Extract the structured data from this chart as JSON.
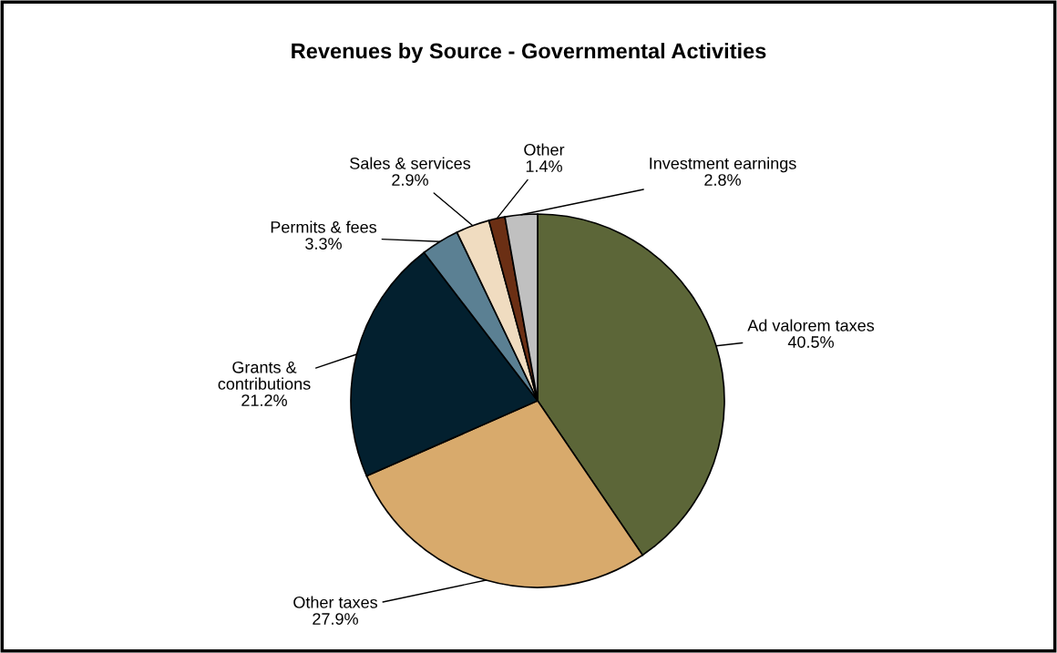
{
  "chart_data": {
    "type": "pie",
    "title": "Revenues by Source - Governmental Activities",
    "categories": [
      "Ad valorem taxes",
      "Other taxes",
      "Grants &\ncontributions",
      "Permits & fees",
      "Sales & services",
      "Other",
      "Investment earnings"
    ],
    "values": [
      40.5,
      27.9,
      21.2,
      3.3,
      2.9,
      1.4,
      2.8
    ],
    "value_labels": [
      "40.5%",
      "27.9%",
      "21.2%",
      "3.3%",
      "2.9%",
      "1.4%",
      "2.8%"
    ],
    "colors": [
      "#5c6638",
      "#d8aa6c",
      "#03202f",
      "#5b8093",
      "#f0dcc0",
      "#6b2f14",
      "#c0c0c0"
    ],
    "legend": false
  }
}
